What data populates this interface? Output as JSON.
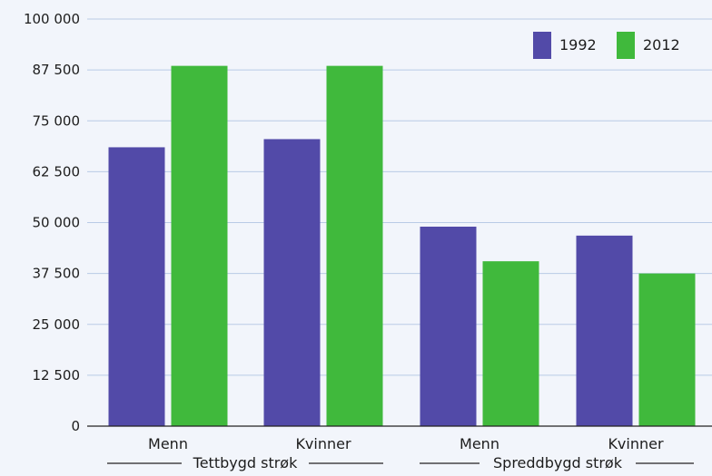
{
  "chart_data": {
    "type": "bar",
    "title": "",
    "xlabel": "",
    "ylabel": "",
    "ylim": [
      0,
      100000
    ],
    "yticks": [
      0,
      12500,
      25000,
      37500,
      50000,
      62500,
      75000,
      87500,
      100000
    ],
    "ytick_labels": [
      "0",
      "12 500",
      "25 000",
      "37 500",
      "50 000",
      "62 500",
      "75 000",
      "87 500",
      "100 000"
    ],
    "categories": [
      "Menn",
      "Kvinner",
      "Menn",
      "Kvinner"
    ],
    "groups": [
      {
        "label": "Tettbygd strøk",
        "categories": [
          0,
          1
        ]
      },
      {
        "label": "Spreddbygd strøk",
        "categories": [
          2,
          3
        ]
      }
    ],
    "series": [
      {
        "name": "1992",
        "color": "#524aa8",
        "values": [
          68500,
          70500,
          49000,
          46800
        ]
      },
      {
        "name": "2012",
        "color": "#40b93c",
        "values": [
          88500,
          88500,
          40500,
          37500
        ]
      }
    ],
    "grid": true,
    "legend_position": "top-right"
  }
}
